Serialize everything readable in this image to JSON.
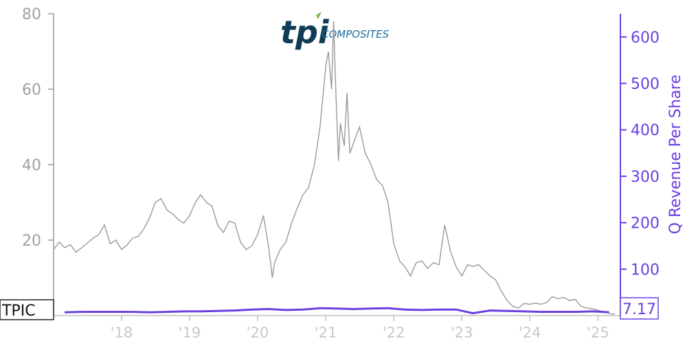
{
  "chart_data": {
    "type": "line",
    "title": "",
    "xlabel": "",
    "ylabel_left": "",
    "ylabel_right": "Q Revenue Per Share",
    "x_tick_labels": [
      "'18",
      "'19",
      "'20",
      "'21",
      "'22",
      "'23",
      "'24",
      "'25"
    ],
    "x_range": [
      "2017-01-01",
      "2025-05-01"
    ],
    "y_left_ticks": [
      20,
      40,
      60,
      80
    ],
    "y_left_range": [
      0,
      80
    ],
    "y_right_ticks": [
      100,
      200,
      300,
      400,
      500,
      600
    ],
    "y_right_range": [
      0,
      650
    ],
    "grid": false,
    "ticker_label": "TPIC",
    "last_value_label": "7.17",
    "series": [
      {
        "name": "TPIC",
        "axis": "left",
        "color": "#999999",
        "points": [
          [
            "2017-01-01",
            17.5
          ],
          [
            "2017-02-01",
            19.5
          ],
          [
            "2017-03-01",
            18.0
          ],
          [
            "2017-04-01",
            18.8
          ],
          [
            "2017-05-01",
            16.8
          ],
          [
            "2017-06-01",
            18.0
          ],
          [
            "2017-07-01",
            19.2
          ],
          [
            "2017-08-01",
            20.5
          ],
          [
            "2017-09-01",
            21.5
          ],
          [
            "2017-10-01",
            24.0
          ],
          [
            "2017-11-01",
            19.0
          ],
          [
            "2017-12-01",
            20.0
          ],
          [
            "2018-01-01",
            17.5
          ],
          [
            "2018-02-01",
            18.8
          ],
          [
            "2018-03-01",
            20.5
          ],
          [
            "2018-04-01",
            21.0
          ],
          [
            "2018-05-01",
            23.0
          ],
          [
            "2018-06-01",
            26.0
          ],
          [
            "2018-07-01",
            30.0
          ],
          [
            "2018-08-01",
            31.0
          ],
          [
            "2018-09-01",
            28.0
          ],
          [
            "2018-10-01",
            27.0
          ],
          [
            "2018-11-01",
            25.5
          ],
          [
            "2018-12-01",
            24.5
          ],
          [
            "2019-01-01",
            26.5
          ],
          [
            "2019-02-01",
            30.0
          ],
          [
            "2019-03-01",
            32.0
          ],
          [
            "2019-04-01",
            30.0
          ],
          [
            "2019-05-01",
            29.0
          ],
          [
            "2019-06-01",
            24.0
          ],
          [
            "2019-07-01",
            22.0
          ],
          [
            "2019-08-01",
            25.0
          ],
          [
            "2019-09-01",
            24.5
          ],
          [
            "2019-10-01",
            19.5
          ],
          [
            "2019-11-01",
            17.5
          ],
          [
            "2019-12-01",
            18.5
          ],
          [
            "2020-01-01",
            21.5
          ],
          [
            "2020-02-01",
            26.5
          ],
          [
            "2020-03-01",
            18.0
          ],
          [
            "2020-03-20",
            10.0
          ],
          [
            "2020-04-01",
            14.0
          ],
          [
            "2020-05-01",
            17.5
          ],
          [
            "2020-06-01",
            19.5
          ],
          [
            "2020-07-01",
            24.5
          ],
          [
            "2020-08-01",
            28.5
          ],
          [
            "2020-09-01",
            32.0
          ],
          [
            "2020-10-01",
            34.0
          ],
          [
            "2020-11-01",
            40.0
          ],
          [
            "2020-12-01",
            50.0
          ],
          [
            "2021-01-01",
            66.0
          ],
          [
            "2021-01-15",
            70.0
          ],
          [
            "2021-02-01",
            60.0
          ],
          [
            "2021-02-12",
            78.0
          ],
          [
            "2021-02-25",
            58.0
          ],
          [
            "2021-03-10",
            41.0
          ],
          [
            "2021-03-20",
            51.0
          ],
          [
            "2021-04-10",
            45.0
          ],
          [
            "2021-04-25",
            59.0
          ],
          [
            "2021-05-10",
            43.0
          ],
          [
            "2021-06-01",
            46.0
          ],
          [
            "2021-07-01",
            50.0
          ],
          [
            "2021-08-01",
            43.0
          ],
          [
            "2021-09-01",
            40.0
          ],
          [
            "2021-10-01",
            36.0
          ],
          [
            "2021-11-01",
            34.5
          ],
          [
            "2021-12-01",
            30.0
          ],
          [
            "2022-01-01",
            19.0
          ],
          [
            "2022-02-01",
            14.5
          ],
          [
            "2022-03-01",
            13.0
          ],
          [
            "2022-04-01",
            10.5
          ],
          [
            "2022-05-01",
            14.0
          ],
          [
            "2022-06-01",
            14.5
          ],
          [
            "2022-07-01",
            12.5
          ],
          [
            "2022-08-01",
            14.0
          ],
          [
            "2022-09-01",
            13.5
          ],
          [
            "2022-10-01",
            24.0
          ],
          [
            "2022-11-01",
            17.0
          ],
          [
            "2022-12-01",
            13.0
          ],
          [
            "2023-01-01",
            10.5
          ],
          [
            "2023-02-01",
            13.5
          ],
          [
            "2023-03-01",
            13.0
          ],
          [
            "2023-04-01",
            13.5
          ],
          [
            "2023-05-01",
            12.0
          ],
          [
            "2023-06-01",
            10.5
          ],
          [
            "2023-07-01",
            9.5
          ],
          [
            "2023-08-01",
            6.5
          ],
          [
            "2023-09-01",
            4.0
          ],
          [
            "2023-10-01",
            2.5
          ],
          [
            "2023-11-01",
            2.0
          ],
          [
            "2023-12-01",
            3.2
          ],
          [
            "2024-01-01",
            3.0
          ],
          [
            "2024-02-01",
            3.3
          ],
          [
            "2024-03-01",
            3.0
          ],
          [
            "2024-04-01",
            3.5
          ],
          [
            "2024-05-01",
            5.0
          ],
          [
            "2024-06-01",
            4.5
          ],
          [
            "2024-07-01",
            4.8
          ],
          [
            "2024-08-01",
            4.0
          ],
          [
            "2024-09-01",
            4.3
          ],
          [
            "2024-10-01",
            2.5
          ],
          [
            "2024-11-01",
            2.0
          ],
          [
            "2024-12-01",
            1.8
          ],
          [
            "2025-01-01",
            1.4
          ],
          [
            "2025-02-01",
            1.0
          ],
          [
            "2025-03-01",
            0.6
          ],
          [
            "2025-04-01",
            0.3
          ]
        ]
      },
      {
        "name": "Q Revenue Per Share",
        "axis": "right",
        "color": "#6a3fe0",
        "points": [
          [
            "2017-03-01",
            7
          ],
          [
            "2017-06-01",
            8
          ],
          [
            "2017-09-01",
            8
          ],
          [
            "2017-12-01",
            8
          ],
          [
            "2018-03-01",
            8
          ],
          [
            "2018-06-01",
            7
          ],
          [
            "2018-09-01",
            8
          ],
          [
            "2018-12-01",
            9
          ],
          [
            "2019-03-01",
            9
          ],
          [
            "2019-06-01",
            10
          ],
          [
            "2019-09-01",
            11
          ],
          [
            "2019-12-01",
            13
          ],
          [
            "2020-03-01",
            14
          ],
          [
            "2020-06-01",
            12
          ],
          [
            "2020-09-01",
            13
          ],
          [
            "2020-12-01",
            16
          ],
          [
            "2021-03-01",
            15
          ],
          [
            "2021-06-01",
            14
          ],
          [
            "2021-09-01",
            15
          ],
          [
            "2021-12-01",
            16
          ],
          [
            "2022-03-01",
            13
          ],
          [
            "2022-06-01",
            12
          ],
          [
            "2022-09-01",
            13
          ],
          [
            "2022-12-01",
            13
          ],
          [
            "2023-03-01",
            5
          ],
          [
            "2023-06-01",
            11
          ],
          [
            "2023-09-01",
            10
          ],
          [
            "2023-12-01",
            9
          ],
          [
            "2024-03-01",
            8
          ],
          [
            "2024-06-01",
            8
          ],
          [
            "2024-09-01",
            8
          ],
          [
            "2024-12-01",
            9
          ],
          [
            "2025-03-01",
            7.17
          ]
        ]
      }
    ]
  }
}
